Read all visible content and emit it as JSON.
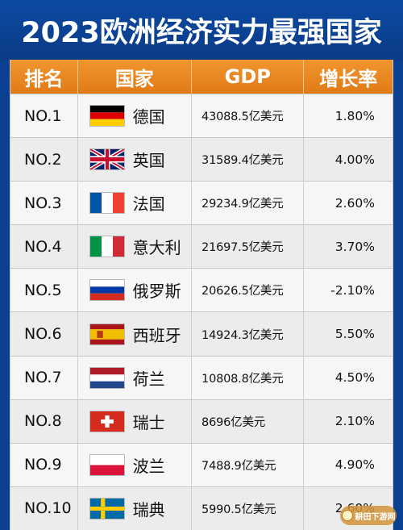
{
  "title": "2023欧洲经济实力最强国家",
  "headers": {
    "rank": "排名",
    "country": "国家",
    "gdp": "GDP",
    "growth": "增长率"
  },
  "rows": [
    {
      "rank": "NO.1",
      "country": "德国",
      "gdp": "43088.5亿美元",
      "growth": "1.80%",
      "flag": "germany-flag-icon"
    },
    {
      "rank": "NO.2",
      "country": "英国",
      "gdp": "31589.4亿美元",
      "growth": "4.00%",
      "flag": "uk-flag-icon"
    },
    {
      "rank": "NO.3",
      "country": "法国",
      "gdp": "29234.9亿美元",
      "growth": "2.60%",
      "flag": "france-flag-icon"
    },
    {
      "rank": "NO.4",
      "country": "意大利",
      "gdp": "21697.5亿美元",
      "growth": "3.70%",
      "flag": "italy-flag-icon"
    },
    {
      "rank": "NO.5",
      "country": "俄罗斯",
      "gdp": "20626.5亿美元",
      "growth": "-2.10%",
      "flag": "russia-flag-icon"
    },
    {
      "rank": "NO.6",
      "country": "西班牙",
      "gdp": "14924.3亿美元",
      "growth": "5.50%",
      "flag": "spain-flag-icon"
    },
    {
      "rank": "NO.7",
      "country": "荷兰",
      "gdp": "10808.8亿美元",
      "growth": "4.50%",
      "flag": "netherlands-flag-icon"
    },
    {
      "rank": "NO.8",
      "country": "瑞士",
      "gdp": "8696亿美元",
      "growth": "2.10%",
      "flag": "switzerland-flag-icon"
    },
    {
      "rank": "NO.9",
      "country": "波兰",
      "gdp": "7488.9亿美元",
      "growth": "4.90%",
      "flag": "poland-flag-icon"
    },
    {
      "rank": "NO.10",
      "country": "瑞典",
      "gdp": "5990.5亿美元",
      "growth": "2.60%",
      "flag": "sweden-flag-icon"
    }
  ],
  "watermark": {
    "text": "耕田下游网"
  },
  "colors": {
    "background": "#0b3f8f",
    "header": "#e8861f",
    "row": "#f6f6f6"
  }
}
